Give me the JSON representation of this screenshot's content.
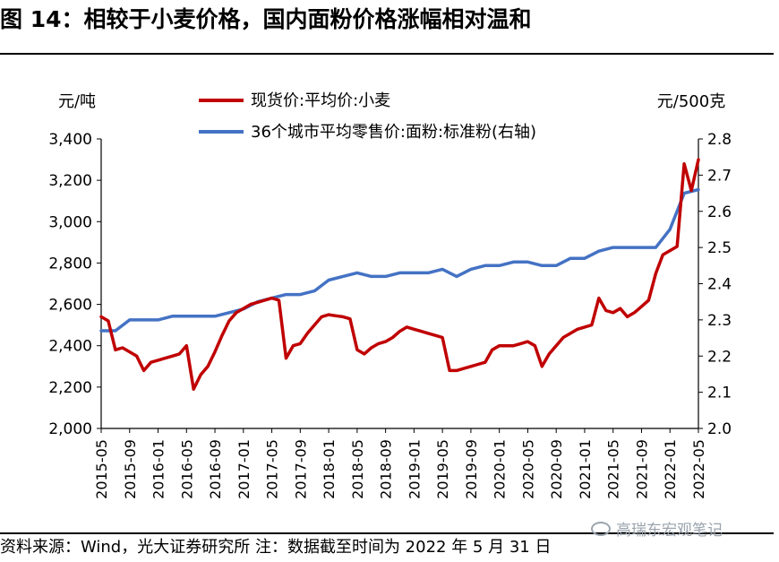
{
  "figure": {
    "title": "图 14：相较于小麦价格，国内面粉价格涨幅相对温和",
    "source": "资料来源：Wind，光大证券研究所   注：数据截至时间为 2022 年 5 月 31 日",
    "watermark": "高瑞东宏观笔记"
  },
  "colors": {
    "wheat": "#c00000",
    "flour": "#4472c4",
    "axis": "#000000"
  },
  "chart_data": {
    "type": "line",
    "title": "",
    "left_unit": "元/吨",
    "right_unit": "元/500克",
    "ylim": [
      2000,
      3400
    ],
    "y2lim": [
      2.0,
      2.8
    ],
    "y_ticks": [
      "2,000",
      "2,200",
      "2,400",
      "2,600",
      "2,800",
      "3,000",
      "3,200",
      "3,400"
    ],
    "y2_ticks": [
      "2.0",
      "2.1",
      "2.2",
      "2.3",
      "2.4",
      "2.5",
      "2.6",
      "2.7",
      "2.8"
    ],
    "x_range": [
      "2015-05",
      "2022-05"
    ],
    "x_ticks": [
      "2015-05",
      "2015-09",
      "2016-01",
      "2016-05",
      "2016-09",
      "2017-01",
      "2017-05",
      "2017-09",
      "2018-01",
      "2018-05",
      "2018-09",
      "2019-01",
      "2019-05",
      "2019-09",
      "2020-01",
      "2020-05",
      "2020-09",
      "2021-01",
      "2021-05",
      "2021-09",
      "2022-01",
      "2022-05"
    ],
    "series": [
      {
        "name": "现货价:平均价:小麦",
        "axis": "left",
        "x": [
          "2015-05",
          "2015-06",
          "2015-07",
          "2015-08",
          "2015-09",
          "2015-10",
          "2015-11",
          "2015-12",
          "2016-01",
          "2016-02",
          "2016-03",
          "2016-04",
          "2016-05",
          "2016-06",
          "2016-07",
          "2016-08",
          "2016-09",
          "2016-10",
          "2016-11",
          "2016-12",
          "2017-01",
          "2017-02",
          "2017-03",
          "2017-04",
          "2017-05",
          "2017-06",
          "2017-07",
          "2017-08",
          "2017-09",
          "2017-10",
          "2017-11",
          "2017-12",
          "2018-01",
          "2018-02",
          "2018-03",
          "2018-04",
          "2018-05",
          "2018-06",
          "2018-07",
          "2018-08",
          "2018-09",
          "2018-10",
          "2018-11",
          "2018-12",
          "2019-01",
          "2019-02",
          "2019-03",
          "2019-04",
          "2019-05",
          "2019-06",
          "2019-07",
          "2019-08",
          "2019-09",
          "2019-10",
          "2019-11",
          "2019-12",
          "2020-01",
          "2020-02",
          "2020-03",
          "2020-04",
          "2020-05",
          "2020-06",
          "2020-07",
          "2020-08",
          "2020-09",
          "2020-10",
          "2020-11",
          "2020-12",
          "2021-01",
          "2021-02",
          "2021-03",
          "2021-04",
          "2021-05",
          "2021-06",
          "2021-07",
          "2021-08",
          "2021-09",
          "2021-10",
          "2021-11",
          "2021-12",
          "2022-01",
          "2022-02",
          "2022-03",
          "2022-04",
          "2022-05"
        ],
        "values": [
          2540,
          2520,
          2380,
          2390,
          2370,
          2350,
          2280,
          2320,
          2330,
          2340,
          2350,
          2360,
          2400,
          2190,
          2260,
          2300,
          2370,
          2450,
          2520,
          2560,
          2580,
          2600,
          2610,
          2620,
          2630,
          2620,
          2340,
          2400,
          2410,
          2460,
          2500,
          2540,
          2550,
          2545,
          2540,
          2530,
          2380,
          2360,
          2390,
          2410,
          2420,
          2440,
          2470,
          2490,
          2480,
          2470,
          2460,
          2450,
          2440,
          2280,
          2280,
          2290,
          2300,
          2310,
          2320,
          2380,
          2400,
          2400,
          2400,
          2410,
          2420,
          2400,
          2300,
          2360,
          2400,
          2440,
          2460,
          2480,
          2490,
          2500,
          2630,
          2570,
          2560,
          2580,
          2540,
          2560,
          2590,
          2620,
          2750,
          2840,
          2860,
          2880,
          3280,
          3150,
          3300
        ]
      },
      {
        "name": "36个城市平均零售价:面粉:标准粉(右轴)",
        "axis": "right",
        "x": [
          "2015-05",
          "2015-07",
          "2015-09",
          "2015-11",
          "2016-01",
          "2016-03",
          "2016-05",
          "2016-07",
          "2016-09",
          "2016-11",
          "2017-01",
          "2017-03",
          "2017-05",
          "2017-07",
          "2017-09",
          "2017-11",
          "2018-01",
          "2018-03",
          "2018-05",
          "2018-07",
          "2018-09",
          "2018-11",
          "2019-01",
          "2019-03",
          "2019-05",
          "2019-07",
          "2019-09",
          "2019-11",
          "2020-01",
          "2020-03",
          "2020-05",
          "2020-07",
          "2020-09",
          "2020-11",
          "2021-01",
          "2021-03",
          "2021-05",
          "2021-07",
          "2021-09",
          "2021-11",
          "2022-01",
          "2022-03",
          "2022-05"
        ],
        "values": [
          2.27,
          2.27,
          2.3,
          2.3,
          2.3,
          2.31,
          2.31,
          2.31,
          2.31,
          2.32,
          2.33,
          2.35,
          2.36,
          2.37,
          2.37,
          2.38,
          2.41,
          2.42,
          2.43,
          2.42,
          2.42,
          2.43,
          2.43,
          2.43,
          2.44,
          2.42,
          2.44,
          2.45,
          2.45,
          2.46,
          2.46,
          2.45,
          2.45,
          2.47,
          2.47,
          2.49,
          2.5,
          2.5,
          2.5,
          2.5,
          2.55,
          2.65,
          2.66
        ]
      }
    ]
  }
}
